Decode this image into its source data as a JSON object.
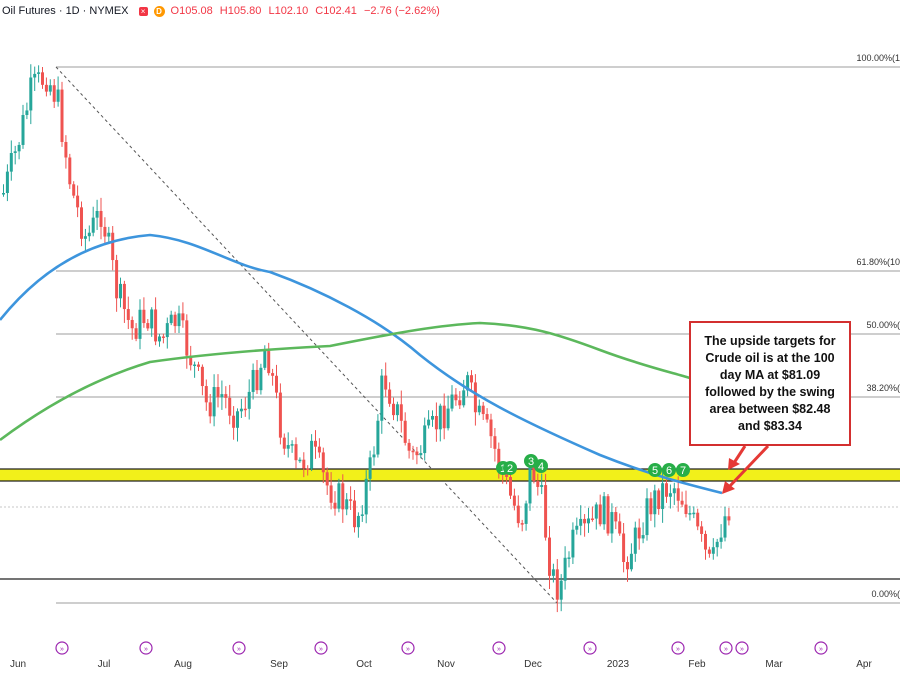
{
  "header": {
    "symbol": "Oil Futures · 1D · NYMEX",
    "open": "O105.08",
    "high": "H105.80",
    "low": "L102.10",
    "close": "C102.41",
    "change": "−2.76 (−2.62%)"
  },
  "annotation": {
    "text": "The upside targets for Crude oil is at the 100 day MA at $81.09 followed by the swing area between $82.48 and $83.34"
  },
  "chart_data": {
    "type": "candlestick",
    "x_tick_labels": [
      "Jun",
      "Jul",
      "Aug",
      "Sep",
      "Oct",
      "Nov",
      "Dec",
      "2023",
      "Feb",
      "Mar",
      "Apr"
    ],
    "fib_levels": [
      {
        "label": "100.00%(1",
        "price": 123.7
      },
      {
        "label": "61.80%(10",
        "price": 102.2
      },
      {
        "label": "50.00%(",
        "price": 95.6
      },
      {
        "label": "38.20%(",
        "price": 89.0
      },
      {
        "label": "0.00%(",
        "price": 67.5
      }
    ],
    "swing_area": {
      "low": 82.48,
      "high": 83.34
    },
    "horizontal_levels": [
      83.34,
      82.48,
      69.0
    ],
    "ma_100_current": 81.09,
    "markers": [
      "1",
      "2",
      "3",
      "4",
      "5",
      "6",
      "7"
    ],
    "colors": {
      "up": "#26a69a",
      "down": "#ef5350",
      "ma100": "#3d95dd",
      "ma200": "#5cb85c",
      "swing_area": "#f2f01a",
      "marker": "#27ae48",
      "arrow": "#e53935"
    }
  }
}
